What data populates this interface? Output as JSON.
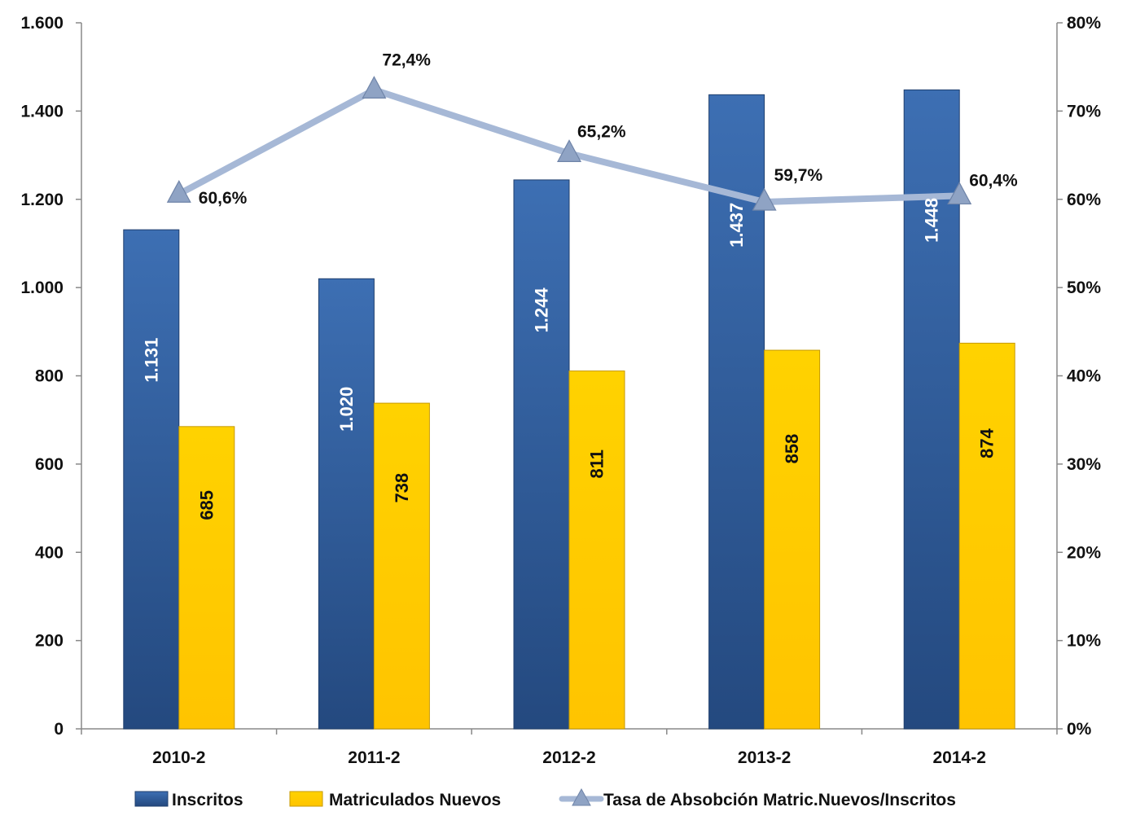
{
  "chart_data": {
    "type": "bar",
    "categories": [
      "2010-2",
      "2011-2",
      "2012-2",
      "2013-2",
      "2014-2"
    ],
    "series": [
      {
        "name": "Inscritos",
        "kind": "bar",
        "axis": "left",
        "values": [
          1131,
          1020,
          1244,
          1437,
          1448
        ],
        "labels": [
          "1.131",
          "1.020",
          "1.244",
          "1.437",
          "1.448"
        ],
        "color": "#2f5c9c"
      },
      {
        "name": "Matriculados Nuevos",
        "kind": "bar",
        "axis": "right-none",
        "values": [
          685,
          738,
          811,
          858,
          874
        ],
        "labels": [
          "685",
          "738",
          "811",
          "858",
          "874"
        ],
        "color": "#ffcc00"
      },
      {
        "name": "Tasa de Absobción Matric.Nuevos/Inscritos",
        "kind": "line",
        "axis": "right",
        "values": [
          60.6,
          72.4,
          65.2,
          59.7,
          60.4
        ],
        "labels": [
          "60,6%",
          "72,4%",
          "65,2%",
          "59,7%",
          "60,4%"
        ],
        "color": "#a6b8d6"
      }
    ],
    "y_left": {
      "min": 0,
      "max": 1600,
      "ticks": [
        0,
        200,
        400,
        600,
        800,
        1000,
        1200,
        1400,
        1600
      ],
      "tick_labels": [
        "0",
        "200",
        "400",
        "600",
        "800",
        "1.000",
        "1.200",
        "1.400",
        "1.600"
      ]
    },
    "y_right": {
      "min": 0,
      "max": 80,
      "ticks": [
        0,
        10,
        20,
        30,
        40,
        50,
        60,
        70,
        80
      ],
      "tick_labels": [
        "0%",
        "10%",
        "20%",
        "30%",
        "40%",
        "50%",
        "60%",
        "70%",
        "80%"
      ]
    },
    "grid": false,
    "legend_position": "bottom"
  }
}
